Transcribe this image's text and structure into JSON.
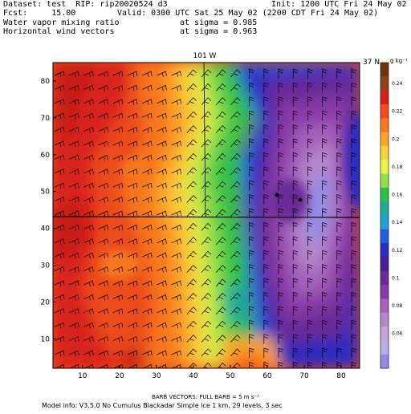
{
  "header": {
    "line1_left": "Dataset: test  RIP: rip20020524 d3",
    "line1_right": "Init: 1200 UTC Fri 24 May 02",
    "line2_left": "Fcst:     15.00",
    "line2_right": "Valid: 0300 UTC Sat 25 May 02 (2200 CDT Fri 24 May 02)",
    "line3_left": "Water vapor mixing ratio",
    "line3_right": "at sigma = 0.985",
    "line4_left": "Horizontal wind vectors",
    "line4_right": "at sigma = 0.963"
  },
  "map": {
    "top_label": "101 W",
    "right_label": "37 N",
    "x_ticks": [
      "10",
      "20",
      "30",
      "40",
      "50",
      "60",
      "70",
      "80"
    ],
    "y_ticks": [
      "10",
      "20",
      "30",
      "40",
      "50",
      "60",
      "70",
      "80"
    ]
  },
  "colorbar": {
    "unit_label": "g kg⁻¹",
    "tick_labels": [
      "0.24",
      "0.22",
      "0.2",
      "0.18",
      "0.16",
      "0.14",
      "0.12",
      "0.1",
      "0.08",
      "0.06"
    ],
    "colors": [
      "#6b3410",
      "#8c4418",
      "#d8201a",
      "#f24c1c",
      "#f7781e",
      "#fca72b",
      "#f5d43a",
      "#e8f548",
      "#93e14a",
      "#2fbf49",
      "#1faa9a",
      "#23a0d8",
      "#1f5fe0",
      "#2c2cc4",
      "#4a1f9c",
      "#6a2a98",
      "#8a3aa8",
      "#a662bc",
      "#b888cc",
      "#c4a6d8",
      "#b8b0e8",
      "#8e8ee8"
    ]
  },
  "footer": {
    "barb_line": "BARB VECTORS:  FULL BARB = 5 m s⁻¹",
    "model_line": "Model info: V3.5.0 No Cumulus Blackadar  Simple ice    1 km,  29 levels,     3 sec"
  }
}
